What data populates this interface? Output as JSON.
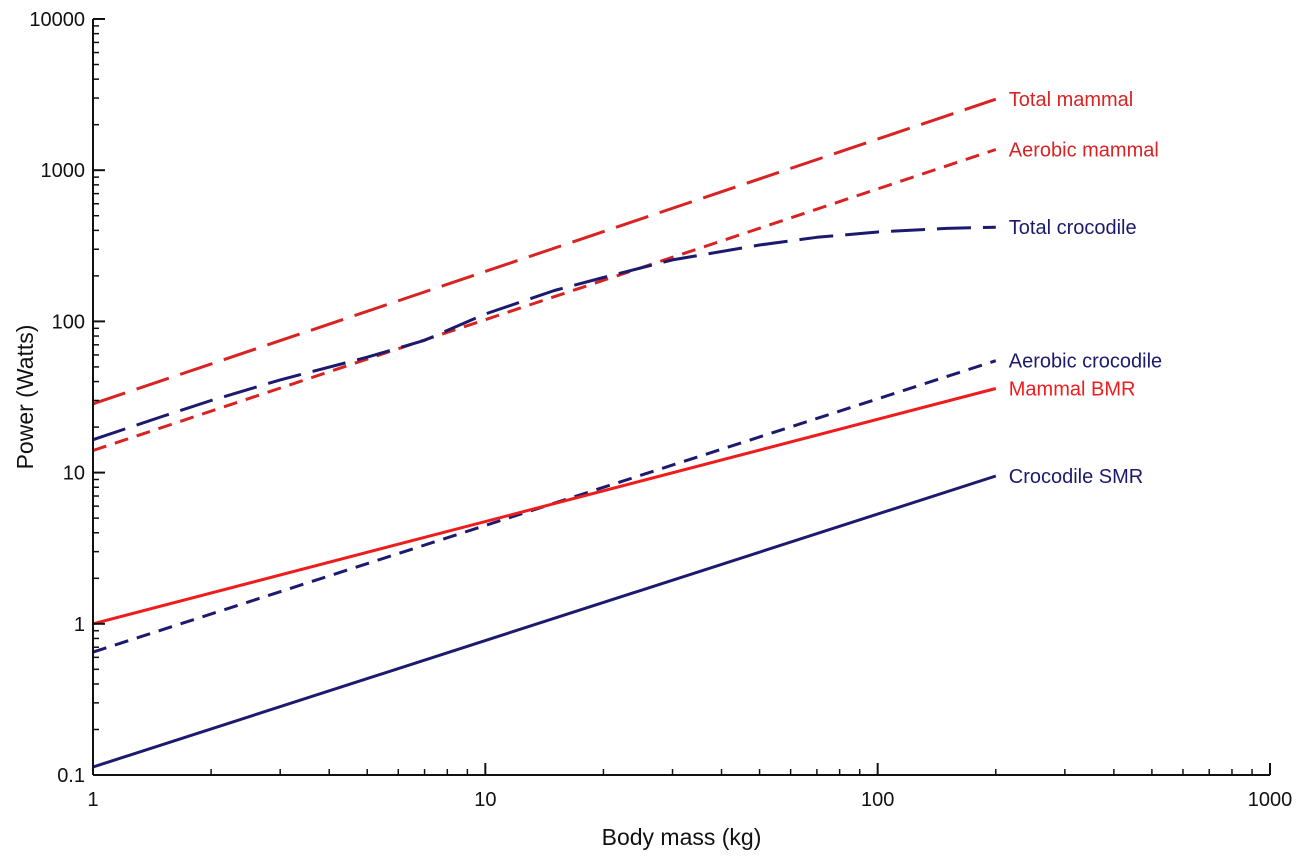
{
  "chart_data": {
    "type": "line",
    "title": "",
    "xlabel": "Body mass  (kg)",
    "ylabel": "Power  (Watts)",
    "xscale": "log",
    "yscale": "log",
    "xlim": [
      1,
      1000
    ],
    "ylim": [
      0.1,
      10000
    ],
    "grid": false,
    "legend": "inline labels at right end of each line",
    "x_ticks": [
      {
        "value": 1,
        "label": "1"
      },
      {
        "value": 10,
        "label": "10"
      },
      {
        "value": 100,
        "label": "100"
      },
      {
        "value": 1000,
        "label": "1000"
      }
    ],
    "y_ticks": [
      {
        "value": 0.1,
        "label": "0.1"
      },
      {
        "value": 1,
        "label": "1"
      },
      {
        "value": 10,
        "label": "10"
      },
      {
        "value": 100,
        "label": "100"
      },
      {
        "value": 1000,
        "label": "1000"
      },
      {
        "value": 10000,
        "label": "10000"
      }
    ],
    "series": [
      {
        "name": "Total mammal",
        "color": "#d92323",
        "dash": "long-dash",
        "x": [
          1,
          200
        ],
        "y": [
          28.5,
          2950
        ]
      },
      {
        "name": "Aerobic mammal",
        "color": "#d92323",
        "dash": "short-dash",
        "x": [
          1,
          200
        ],
        "y": [
          14,
          1370
        ]
      },
      {
        "name": "Total crocodile",
        "color": "#1c1a6e",
        "dash": "long-dash",
        "x": [
          1,
          1.5,
          2,
          3,
          5,
          7,
          10,
          15,
          20,
          30,
          50,
          70,
          100,
          150,
          200
        ],
        "y": [
          16.5,
          23.5,
          30,
          41,
          58,
          75,
          112,
          160,
          195,
          255,
          320,
          360,
          390,
          412,
          420
        ]
      },
      {
        "name": "Aerobic crocodile",
        "color": "#1c1a6e",
        "dash": "short-dash",
        "x": [
          1,
          200
        ],
        "y": [
          0.65,
          55
        ]
      },
      {
        "name": "Mammal BMR",
        "color": "#ee1c1c",
        "dash": "solid",
        "x": [
          1,
          200
        ],
        "y": [
          1.0,
          36
        ]
      },
      {
        "name": "Crocodile SMR",
        "color": "#1c1a6e",
        "dash": "solid",
        "x": [
          1,
          200
        ],
        "y": [
          0.113,
          9.5
        ]
      }
    ]
  }
}
